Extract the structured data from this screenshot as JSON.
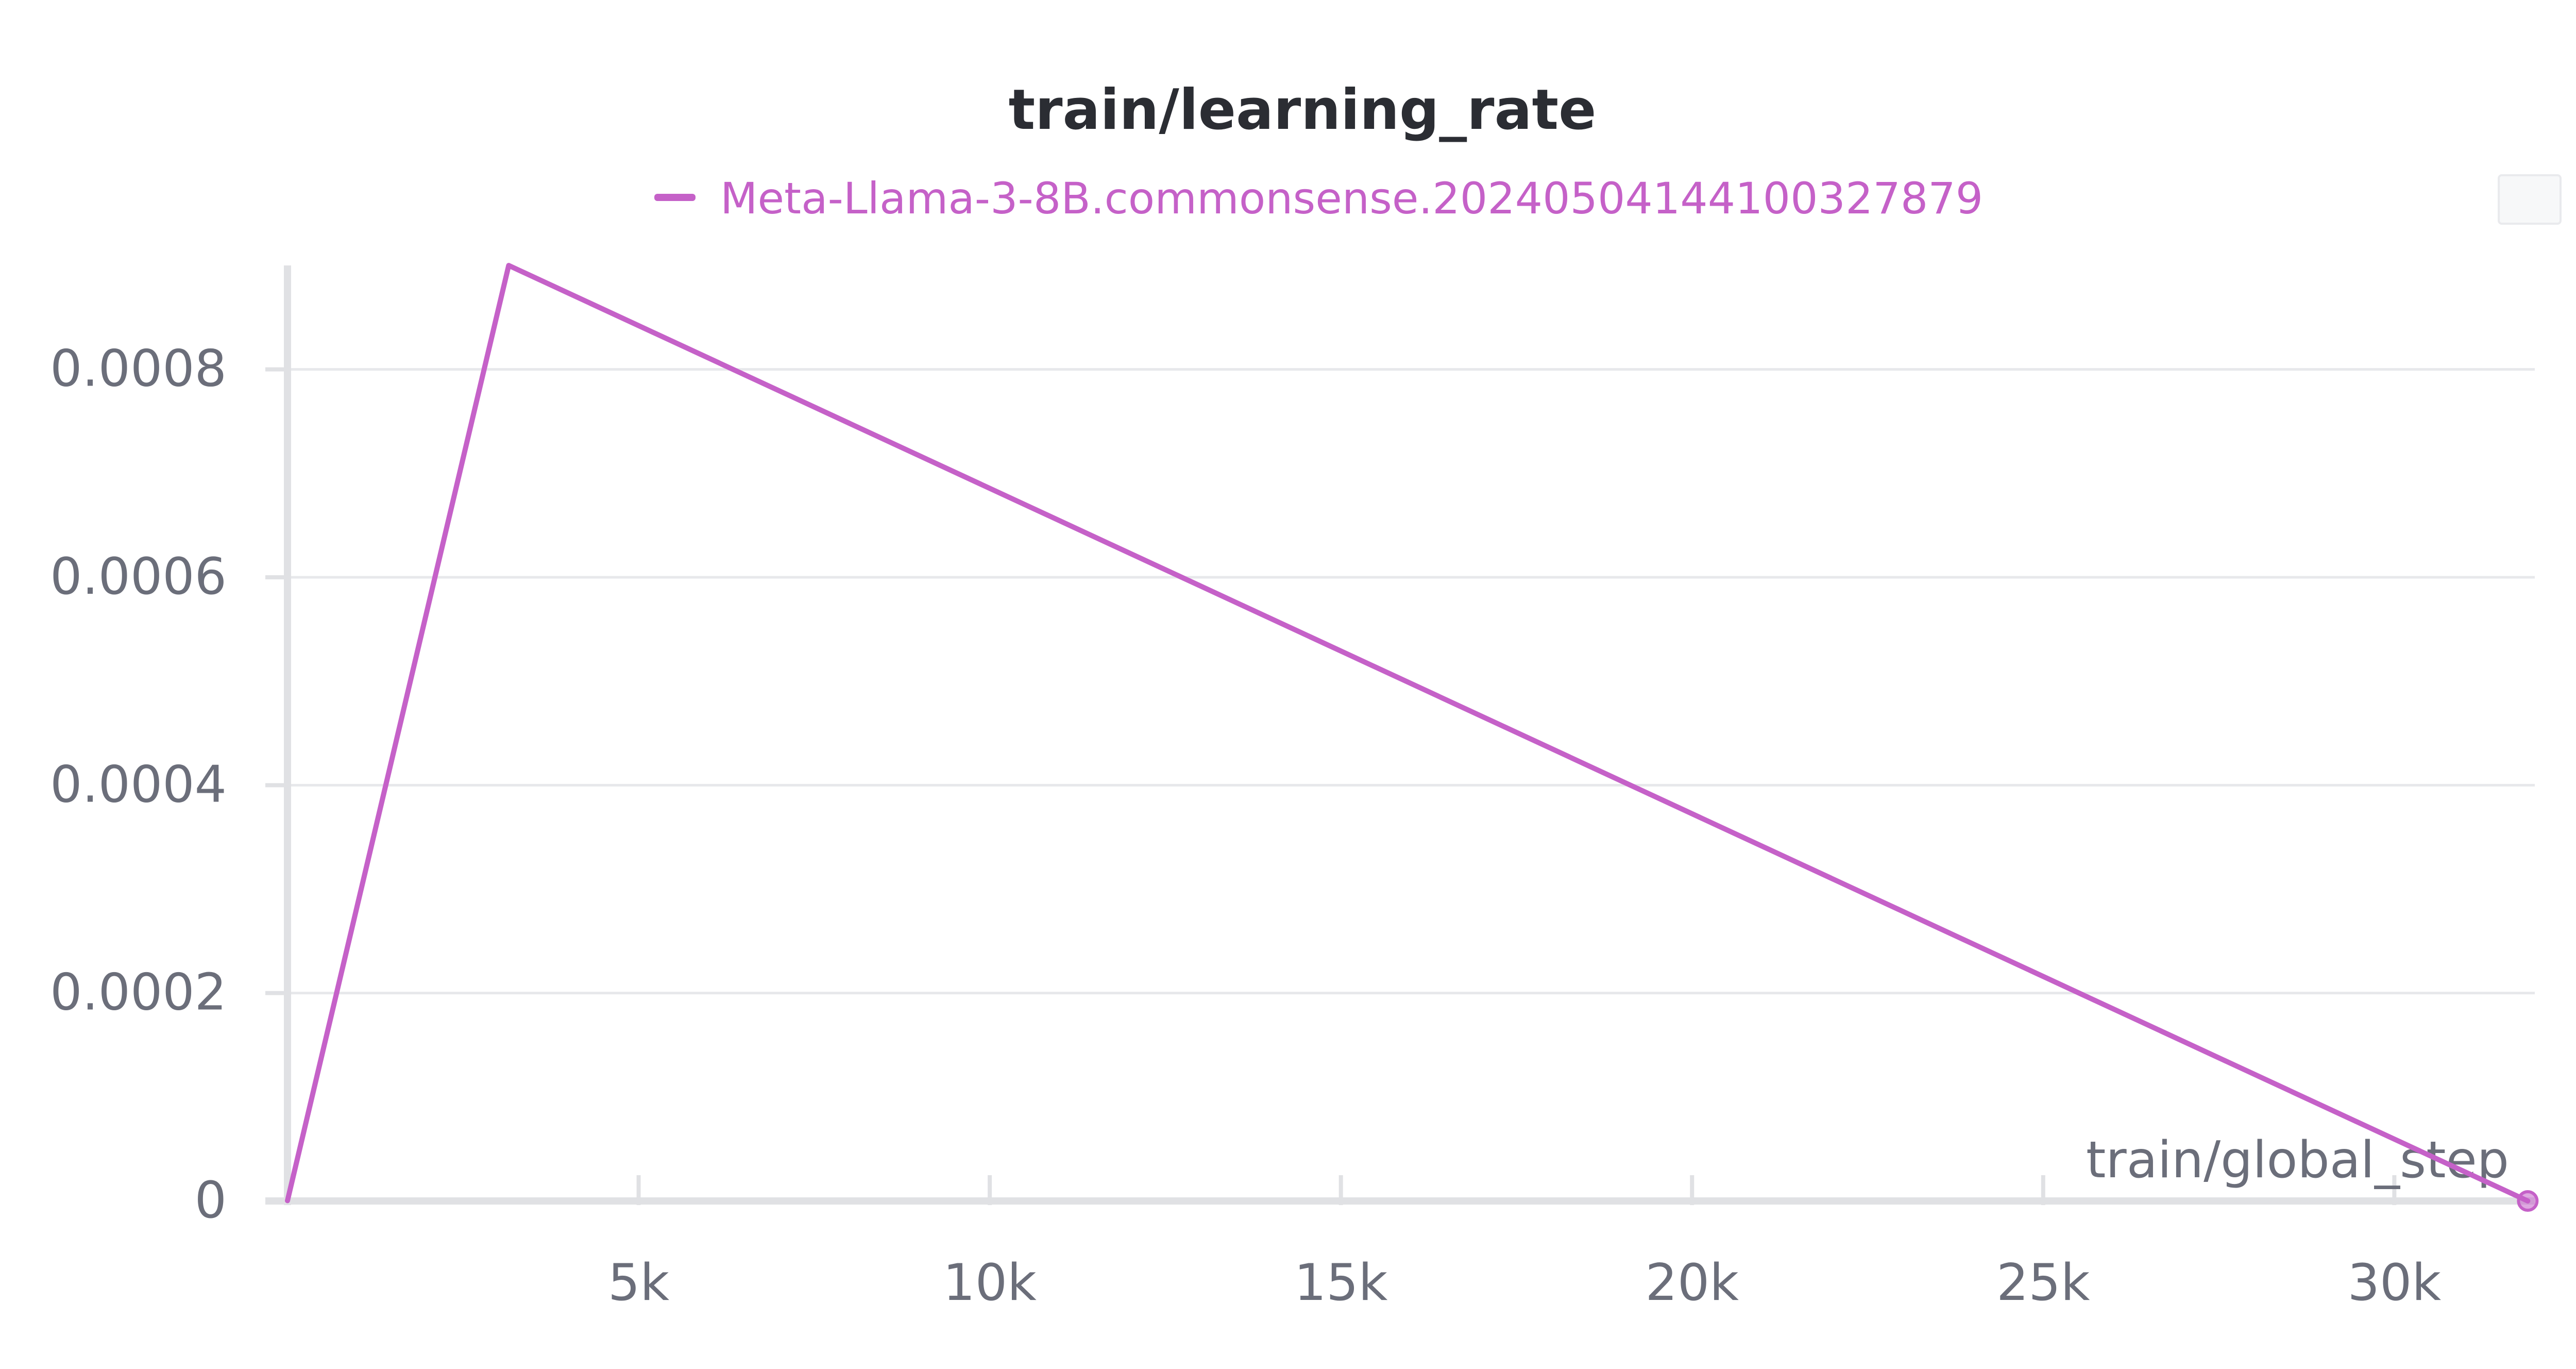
{
  "chart_data": {
    "type": "line",
    "title": "train/learning_rate",
    "xlabel": "train/global_step",
    "ylabel": "",
    "xlim": [
      0,
      32000
    ],
    "ylim": [
      0,
      0.0009
    ],
    "x_ticks": [
      5000,
      10000,
      15000,
      20000,
      25000,
      30000
    ],
    "x_tick_labels": [
      "5k",
      "10k",
      "15k",
      "20k",
      "25k",
      "30k"
    ],
    "y_ticks": [
      0,
      0.0002,
      0.0004,
      0.0006,
      0.0008
    ],
    "y_tick_labels": [
      "0",
      "0.0002",
      "0.0004",
      "0.0006",
      "0.0008"
    ],
    "grid": true,
    "legend_position": "top-center",
    "series": [
      {
        "name": "Meta-Llama-3-8B.commonsense.20240504144100327879",
        "color": "#c561c8",
        "x": [
          0,
          3150,
          31900
        ],
        "y": [
          3e-07,
          0.0009,
          0.0
        ]
      }
    ]
  }
}
